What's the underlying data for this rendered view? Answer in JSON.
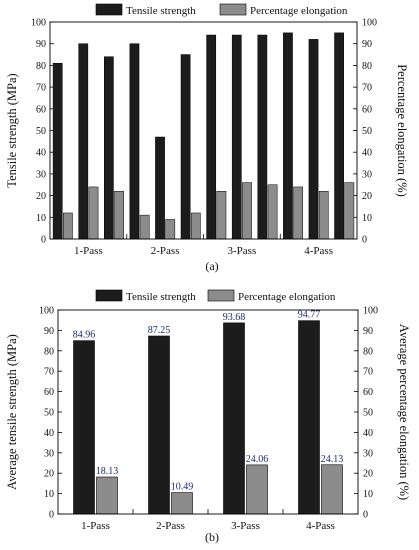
{
  "figure": {
    "captions": [
      "(a)",
      "(b)"
    ]
  },
  "colors": {
    "tensile": "#1c1c1c",
    "elongation": "#8c8c8c",
    "label": "#1a2a6a"
  },
  "chart_data": [
    {
      "type": "bar",
      "legend": [
        "Tensile strength",
        "Percentage elongation"
      ],
      "legend_placement": "top",
      "categories": [
        "1-Pass",
        "2-Pass",
        "3-Pass",
        "4-Pass"
      ],
      "ylabel": "Tensile strength (MPa)",
      "y2label": "Percentage elongation (%)",
      "ylim": [
        0,
        100
      ],
      "y2lim": [
        0,
        100
      ],
      "yticks": [
        "0",
        "10",
        "20",
        "30",
        "40",
        "50",
        "60",
        "70",
        "80",
        "90",
        "100"
      ],
      "y2ticks": [
        "0",
        "10",
        "20",
        "30",
        "40",
        "50",
        "60",
        "70",
        "80",
        "90",
        "100"
      ],
      "series": [
        {
          "name": "Tensile strength",
          "values": [
            [
              81,
              90,
              84
            ],
            [
              90,
              47,
              85
            ],
            [
              94,
              94,
              94
            ],
            [
              95,
              92,
              95
            ]
          ]
        },
        {
          "name": "Percentage elongation",
          "values": [
            [
              12,
              24,
              22
            ],
            [
              11,
              9,
              12
            ],
            [
              22,
              26,
              25
            ],
            [
              24,
              22,
              26
            ]
          ]
        }
      ]
    },
    {
      "type": "bar",
      "legend": [
        "Tensile strength",
        "Percentage elongation"
      ],
      "legend_placement": "top",
      "categories": [
        "1-Pass",
        "2-Pass",
        "3-Pass",
        "4-Pass"
      ],
      "ylabel": "Average tensile strength (MPa)",
      "y2label": "Average percentage elongation (%)",
      "ylim": [
        0,
        100
      ],
      "y2lim": [
        0,
        100
      ],
      "yticks": [
        "0",
        "10",
        "20",
        "30",
        "40",
        "50",
        "60",
        "70",
        "80",
        "90",
        "100"
      ],
      "y2ticks": [
        "0",
        "10",
        "20",
        "30",
        "40",
        "50",
        "60",
        "70",
        "80",
        "90",
        "100"
      ],
      "series": [
        {
          "name": "Tensile strength",
          "values": [
            84.96,
            87.25,
            93.68,
            94.77
          ],
          "labels": [
            "84.96",
            "87.25",
            "93.68",
            "94.77"
          ]
        },
        {
          "name": "Percentage elongation",
          "values": [
            18.13,
            10.49,
            24.06,
            24.13
          ],
          "labels": [
            "18.13",
            "10.49",
            "24.06",
            "24.13"
          ]
        }
      ]
    }
  ]
}
